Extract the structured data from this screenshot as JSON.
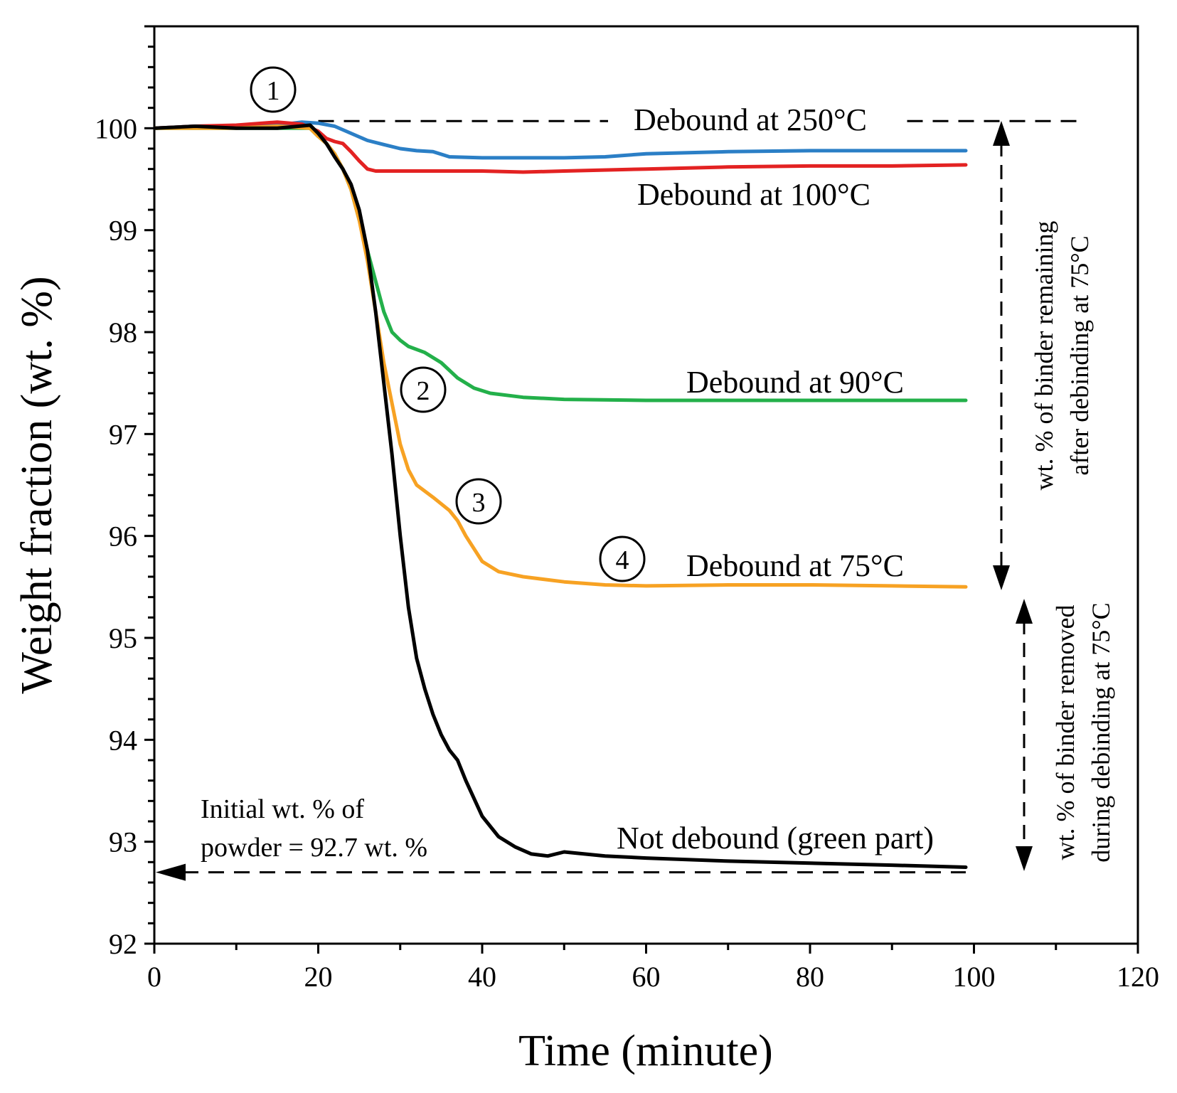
{
  "chart_data": {
    "type": "line",
    "title": "",
    "xlabel": "Time (minute)",
    "ylabel": "Weight fraction (wt. %)",
    "xlim": [
      0,
      120
    ],
    "ylim": [
      92,
      101
    ],
    "xticks": [
      0,
      20,
      40,
      60,
      80,
      100,
      120
    ],
    "yticks": [
      92,
      93,
      94,
      95,
      96,
      97,
      98,
      99,
      100
    ],
    "grid": false,
    "series": [
      {
        "name": "Debound at 250°C",
        "color": "#2b7fc6",
        "x": [
          0,
          5,
          10,
          15,
          18,
          20,
          22,
          24,
          26,
          28,
          30,
          32,
          34,
          36,
          40,
          45,
          50,
          55,
          60,
          70,
          80,
          90,
          99
        ],
        "y": [
          100.0,
          100.02,
          100.02,
          100.03,
          100.06,
          100.05,
          100.02,
          99.95,
          99.88,
          99.84,
          99.8,
          99.78,
          99.77,
          99.72,
          99.71,
          99.71,
          99.71,
          99.72,
          99.75,
          99.77,
          99.78,
          99.78,
          99.78
        ]
      },
      {
        "name": "Debound at 100°C",
        "color": "#e32222",
        "x": [
          0,
          5,
          10,
          15,
          18,
          20,
          21,
          22,
          23,
          24,
          25,
          26,
          27,
          30,
          35,
          40,
          45,
          50,
          60,
          70,
          80,
          90,
          99
        ],
        "y": [
          100.0,
          100.02,
          100.03,
          100.06,
          100.04,
          99.97,
          99.9,
          99.87,
          99.85,
          99.77,
          99.68,
          99.6,
          99.58,
          99.58,
          99.58,
          99.58,
          99.57,
          99.58,
          99.6,
          99.62,
          99.63,
          99.63,
          99.64
        ]
      },
      {
        "name": "Debound at 90°C",
        "color": "#23b04a",
        "x": [
          0,
          5,
          10,
          15,
          19,
          20,
          21,
          22,
          23,
          24,
          25,
          26,
          27,
          28,
          29,
          30,
          31,
          33,
          35,
          37,
          39,
          41,
          45,
          50,
          60,
          70,
          80,
          90,
          99
        ],
        "y": [
          100.0,
          100.0,
          100.0,
          100.0,
          100.0,
          99.92,
          99.85,
          99.75,
          99.6,
          99.4,
          99.1,
          98.8,
          98.5,
          98.2,
          98.0,
          97.92,
          97.86,
          97.8,
          97.7,
          97.55,
          97.45,
          97.4,
          97.36,
          97.34,
          97.33,
          97.33,
          97.33,
          97.33,
          97.33
        ]
      },
      {
        "name": "Debound at 75°C",
        "color": "#f7a223",
        "x": [
          0,
          5,
          10,
          15,
          19,
          20,
          21,
          22,
          23,
          24,
          25,
          26,
          27,
          28,
          29,
          30,
          31,
          32,
          34,
          36,
          37,
          38,
          40,
          42,
          45,
          50,
          55,
          60,
          70,
          80,
          90,
          99
        ],
        "y": [
          100.0,
          100.0,
          100.0,
          100.02,
          100.0,
          99.92,
          99.85,
          99.75,
          99.6,
          99.4,
          99.1,
          98.7,
          98.2,
          97.7,
          97.3,
          96.9,
          96.65,
          96.5,
          96.38,
          96.25,
          96.15,
          96.0,
          95.75,
          95.65,
          95.6,
          95.55,
          95.52,
          95.51,
          95.52,
          95.52,
          95.51,
          95.5
        ]
      },
      {
        "name": "Not debound (green part)",
        "color": "#000000",
        "x": [
          0,
          5,
          10,
          15,
          19,
          20,
          21,
          22,
          23,
          24,
          25,
          26,
          27,
          28,
          29,
          30,
          31,
          32,
          33,
          34,
          35,
          36,
          37,
          38,
          40,
          42,
          44,
          46,
          48,
          50,
          55,
          60,
          70,
          80,
          90,
          99
        ],
        "y": [
          100.0,
          100.02,
          100.0,
          100.0,
          100.03,
          99.95,
          99.85,
          99.72,
          99.6,
          99.45,
          99.2,
          98.8,
          98.2,
          97.5,
          96.8,
          96.0,
          95.3,
          94.8,
          94.5,
          94.25,
          94.05,
          93.9,
          93.8,
          93.6,
          93.25,
          93.05,
          92.95,
          92.88,
          92.86,
          92.9,
          92.86,
          92.84,
          92.81,
          92.79,
          92.77,
          92.75
        ]
      }
    ],
    "annotations": {
      "label_250": "Debound at 250°C",
      "label_100": "Debound at 100°C",
      "label_90": "Debound at 90°C",
      "label_75": "Debound at 75°C",
      "label_green": "Not debound (green part)",
      "initial_line1": "Initial wt. % of",
      "initial_line2": "powder = 92.7 wt. %",
      "remaining_line1": "wt. % of binder remaining",
      "remaining_line2": "after debinding at 75°C",
      "removed_line1": "wt. % of binder removed",
      "removed_line2": "during debinding at 75°C",
      "circle_1": "1",
      "circle_2": "2",
      "circle_3": "3",
      "circle_4": "4",
      "initial_powder_value": 92.7,
      "reference_top_value": 100.07
    }
  }
}
